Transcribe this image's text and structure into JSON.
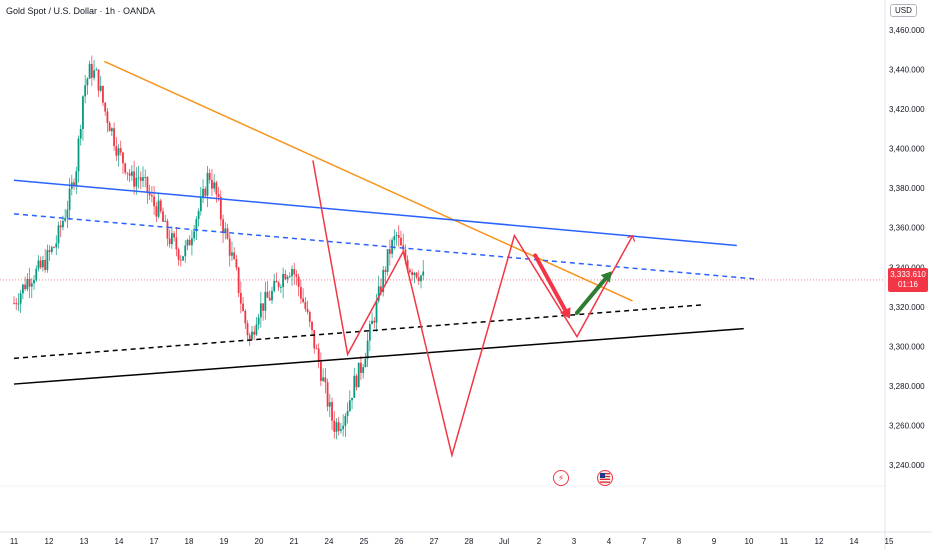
{
  "header": {
    "title": "Gold Spot / U.S. Dollar · 1h · OANDA",
    "currency_label": "USD"
  },
  "price_badge": {
    "price": "3,333.610",
    "countdown": "01:16",
    "color": "#f23645"
  },
  "events": {
    "flash_icon": "lightning-icon",
    "flag_icon": "us-flag-icon"
  },
  "chart_data": {
    "type": "candlestick",
    "symbol": "Gold Spot / U.S. Dollar",
    "interval": "1h",
    "source": "OANDA",
    "ylim": [
      3230,
      3470
    ],
    "y_ticks": [
      "3,460.000",
      "3,440.000",
      "3,420.000",
      "3,400.000",
      "3,380.000",
      "3,360.000",
      "3,340.000",
      "3,320.000",
      "3,300.000",
      "3,280.000",
      "3,260.000",
      "3,240.000"
    ],
    "x_ticks": [
      "11",
      "12",
      "13",
      "14",
      "17",
      "18",
      "19",
      "20",
      "21",
      "24",
      "25",
      "26",
      "27",
      "28",
      "Jul",
      "2",
      "3",
      "4",
      "7",
      "8",
      "9",
      "10",
      "11",
      "12",
      "14",
      "15"
    ],
    "last_price": 3333.61,
    "colors": {
      "up": "#089981",
      "down": "#f23645"
    },
    "price_path": [
      [
        0,
        3322
      ],
      [
        2,
        3334
      ],
      [
        4,
        3340
      ],
      [
        6,
        3352
      ],
      [
        8,
        3375
      ],
      [
        9,
        3392
      ],
      [
        10,
        3430
      ],
      [
        11,
        3440
      ],
      [
        12,
        3436
      ],
      [
        13,
        3420
      ],
      [
        14,
        3410
      ],
      [
        15,
        3398
      ],
      [
        16,
        3392
      ],
      [
        17,
        3384
      ],
      [
        18,
        3386
      ],
      [
        19,
        3380
      ],
      [
        20,
        3372
      ],
      [
        21,
        3368
      ],
      [
        22,
        3356
      ],
      [
        23,
        3352
      ],
      [
        24,
        3346
      ],
      [
        25,
        3350
      ],
      [
        26,
        3364
      ],
      [
        27,
        3372
      ],
      [
        28,
        3388
      ],
      [
        29,
        3378
      ],
      [
        30,
        3362
      ],
      [
        31,
        3350
      ],
      [
        32,
        3336
      ],
      [
        33,
        3316
      ],
      [
        34,
        3302
      ],
      [
        35,
        3318
      ],
      [
        36,
        3322
      ],
      [
        37,
        3326
      ],
      [
        38,
        3332
      ],
      [
        39,
        3338
      ],
      [
        40,
        3340
      ],
      [
        41,
        3330
      ],
      [
        42,
        3318
      ],
      [
        43,
        3304
      ],
      [
        44,
        3290
      ],
      [
        45,
        3274
      ],
      [
        46,
        3260
      ],
      [
        47,
        3262
      ],
      [
        48,
        3270
      ],
      [
        49,
        3282
      ],
      [
        50,
        3290
      ],
      [
        51,
        3304
      ],
      [
        52,
        3318
      ],
      [
        53,
        3334
      ],
      [
        54,
        3348
      ],
      [
        55,
        3356
      ],
      [
        56,
        3346
      ],
      [
        57,
        3340
      ],
      [
        58,
        3338
      ],
      [
        59,
        3334
      ]
    ],
    "overlay_lines": [
      {
        "name": "orange trendline",
        "color": "#f7931a",
        "dash": false,
        "from": [
          13,
          3444
        ],
        "to": [
          89,
          3323
        ]
      },
      {
        "name": "blue trendline",
        "color": "#2962ff",
        "dash": false,
        "from": [
          0,
          3384
        ],
        "to": [
          104,
          3351
        ]
      },
      {
        "name": "blue dashed line",
        "color": "#2962ff",
        "dash": true,
        "from": [
          0,
          3367
        ],
        "to": [
          107,
          3334
        ]
      },
      {
        "name": "black dashed line",
        "color": "#000000",
        "dash": true,
        "from": [
          0,
          3294
        ],
        "to": [
          99,
          3321
        ]
      },
      {
        "name": "black support line",
        "color": "#000000",
        "dash": false,
        "from": [
          0,
          3281
        ],
        "to": [
          105,
          3309
        ]
      }
    ],
    "zigzag": {
      "color": "#f23645",
      "points": [
        [
          43,
          3394
        ],
        [
          48,
          3296
        ],
        [
          56,
          3348
        ],
        [
          63,
          3245
        ],
        [
          72,
          3356
        ],
        [
          81,
          3305
        ],
        [
          89,
          3356
        ]
      ]
    },
    "arrows": [
      {
        "color": "#f23645",
        "from": [
          75,
          3346
        ],
        "to": [
          80,
          3314
        ]
      },
      {
        "color": "#2e7d32",
        "from": [
          81,
          3317
        ],
        "to": [
          86,
          3338
        ]
      }
    ]
  }
}
